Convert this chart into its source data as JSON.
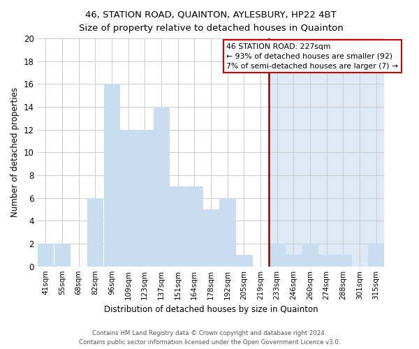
{
  "title": "46, STATION ROAD, QUAINTON, AYLESBURY, HP22 4BT",
  "subtitle": "Size of property relative to detached houses in Quainton",
  "xlabel": "Distribution of detached houses by size in Quainton",
  "ylabel": "Number of detached properties",
  "bar_labels": [
    "41sqm",
    "55sqm",
    "68sqm",
    "82sqm",
    "96sqm",
    "109sqm",
    "123sqm",
    "137sqm",
    "151sqm",
    "164sqm",
    "178sqm",
    "192sqm",
    "205sqm",
    "219sqm",
    "233sqm",
    "246sqm",
    "260sqm",
    "274sqm",
    "288sqm",
    "301sqm",
    "315sqm"
  ],
  "bar_values": [
    2,
    2,
    0,
    6,
    16,
    12,
    12,
    14,
    7,
    7,
    5,
    6,
    1,
    0,
    2,
    1,
    2,
    1,
    1,
    0,
    2
  ],
  "bar_color": "#c8ddf0",
  "bar_edge_color": "#c8ddf0",
  "highlight_color": "#ddeaf6",
  "ylim": [
    0,
    20
  ],
  "yticks": [
    0,
    2,
    4,
    6,
    8,
    10,
    12,
    14,
    16,
    18,
    20
  ],
  "vline_index": 14,
  "vline_color": "#8b0000",
  "annotation_title": "46 STATION ROAD: 227sqm",
  "annotation_line1": "← 93% of detached houses are smaller (92)",
  "annotation_line2": "7% of semi-detached houses are larger (7) →",
  "annotation_box_color": "#ffffff",
  "annotation_box_edge": "#cc0000",
  "footer1": "Contains HM Land Registry data © Crown copyright and database right 2024.",
  "footer2": "Contains public sector information licensed under the Open Government Licence v3.0.",
  "background_color": "#ffffff",
  "grid_color": "#cccccc"
}
